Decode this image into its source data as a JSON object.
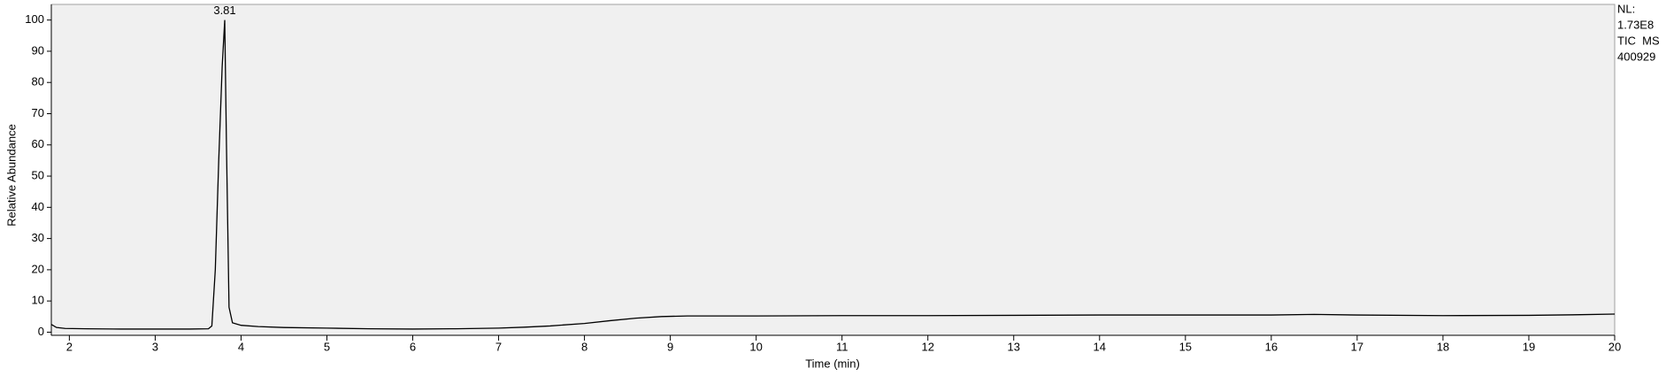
{
  "chart_data": {
    "type": "line",
    "xlabel": "Time (min)",
    "ylabel": "Relative Abundance",
    "xlim": [
      1.79,
      20
    ],
    "ylim": [
      -1,
      105
    ],
    "xticks": [
      2,
      3,
      4,
      5,
      6,
      7,
      8,
      9,
      10,
      11,
      12,
      13,
      14,
      15,
      16,
      17,
      18,
      19,
      20
    ],
    "yticks": [
      0,
      10,
      20,
      30,
      40,
      50,
      60,
      70,
      80,
      90,
      100
    ],
    "series": [
      {
        "color": "#000000",
        "x": [
          1.79,
          1.85,
          1.95,
          2.2,
          2.6,
          3.0,
          3.4,
          3.62,
          3.66,
          3.7,
          3.74,
          3.78,
          3.81,
          3.83,
          3.86,
          3.9,
          4.0,
          4.2,
          4.5,
          5.0,
          5.5,
          6.0,
          6.5,
          7.0,
          7.3,
          7.6,
          8.0,
          8.3,
          8.6,
          8.9,
          9.2,
          10.0,
          11.0,
          12.0,
          13.0,
          14.0,
          15.0,
          16.0,
          16.5,
          17.0,
          18.0,
          19.0,
          19.6,
          20.0
        ],
        "values": [
          2.5,
          1.5,
          1.2,
          1.1,
          1.0,
          1.0,
          1.0,
          1.1,
          2.0,
          20,
          55,
          85,
          100,
          60,
          8,
          3,
          2.2,
          1.8,
          1.5,
          1.3,
          1.1,
          1.0,
          1.1,
          1.3,
          1.6,
          2.0,
          2.8,
          3.7,
          4.5,
          5.0,
          5.2,
          5.2,
          5.3,
          5.3,
          5.4,
          5.5,
          5.5,
          5.5,
          5.7,
          5.5,
          5.3,
          5.4,
          5.6,
          5.8
        ]
      }
    ],
    "annotations": [
      {
        "text": "3.81",
        "x": 3.81,
        "y": 100
      }
    ],
    "info": [
      "NL:",
      "1.73E8",
      "TIC  MS",
      "400929"
    ]
  }
}
